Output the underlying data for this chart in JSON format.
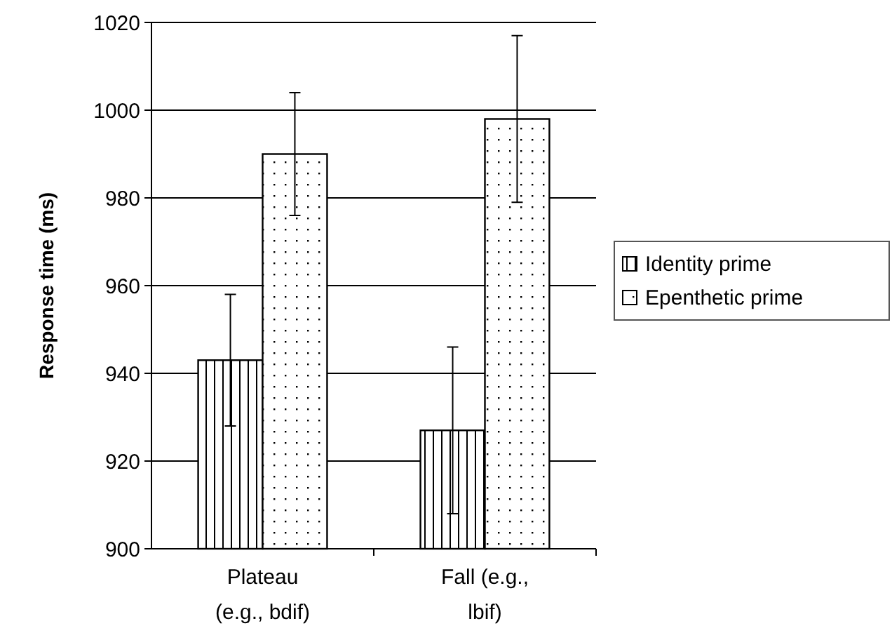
{
  "chart_data": {
    "type": "bar",
    "ylabel": "Response time  (ms)",
    "categories": [
      "Plateau (e.g., bdif)",
      "Fall (e.g., lbif)"
    ],
    "series": [
      {
        "name": "Identity prime",
        "color": "#000000",
        "values": [
          943,
          927
        ],
        "errors": [
          15,
          19
        ]
      },
      {
        "name": "Epenthetic prime",
        "color": "#000000",
        "values": [
          990,
          998
        ],
        "errors": [
          14,
          19
        ]
      }
    ],
    "ylim": [
      900,
      1020
    ],
    "yticks": [
      900,
      920,
      940,
      960,
      980,
      1000,
      1020
    ],
    "grid": "y",
    "legend": "right"
  }
}
